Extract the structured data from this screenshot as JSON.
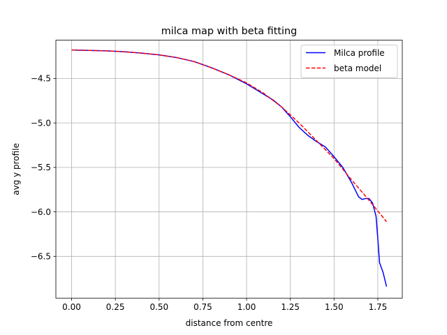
{
  "chart_data": {
    "type": "line",
    "title": "milca map with beta fitting",
    "xlabel": "distance from centre",
    "ylabel": "avg y profile",
    "xlim": [
      -0.09,
      1.89
    ],
    "ylim": [
      -6.97,
      -4.07
    ],
    "xticks": [
      0.0,
      0.25,
      0.5,
      0.75,
      1.0,
      1.25,
      1.5,
      1.75
    ],
    "xtick_labels": [
      "0.00",
      "0.25",
      "0.50",
      "0.75",
      "1.00",
      "1.25",
      "1.50",
      "1.75"
    ],
    "yticks": [
      -4.5,
      -5.0,
      -5.5,
      -6.0,
      -6.5
    ],
    "ytick_labels": [
      "−4.5",
      "−5.0",
      "−5.5",
      "−6.0",
      "−6.5"
    ],
    "grid": true,
    "legend": "top-right",
    "series": [
      {
        "name": "Milca profile",
        "color": "#0000ff",
        "style": "solid",
        "x": [
          0.0,
          0.1,
          0.2,
          0.3,
          0.4,
          0.5,
          0.6,
          0.7,
          0.8,
          0.9,
          1.0,
          1.1,
          1.15,
          1.2,
          1.25,
          1.3,
          1.35,
          1.4,
          1.45,
          1.5,
          1.55,
          1.6,
          1.62,
          1.64,
          1.66,
          1.68,
          1.7,
          1.72,
          1.74,
          1.75,
          1.76,
          1.78,
          1.8
        ],
        "y": [
          -4.18,
          -4.185,
          -4.19,
          -4.2,
          -4.215,
          -4.235,
          -4.265,
          -4.31,
          -4.38,
          -4.46,
          -4.56,
          -4.68,
          -4.74,
          -4.82,
          -4.93,
          -5.05,
          -5.14,
          -5.21,
          -5.27,
          -5.38,
          -5.5,
          -5.67,
          -5.75,
          -5.83,
          -5.86,
          -5.85,
          -5.85,
          -5.9,
          -6.05,
          -6.3,
          -6.57,
          -6.68,
          -6.84
        ]
      },
      {
        "name": "beta model",
        "color": "#ff0000",
        "style": "dashed",
        "x": [
          0.0,
          0.1,
          0.2,
          0.3,
          0.4,
          0.5,
          0.6,
          0.7,
          0.8,
          0.9,
          1.0,
          1.1,
          1.2,
          1.3,
          1.4,
          1.5,
          1.6,
          1.7,
          1.8
        ],
        "y": [
          -4.18,
          -4.185,
          -4.19,
          -4.2,
          -4.215,
          -4.235,
          -4.265,
          -4.31,
          -4.38,
          -4.46,
          -4.55,
          -4.67,
          -4.82,
          -5.0,
          -5.2,
          -5.4,
          -5.64,
          -5.87,
          -6.11
        ]
      }
    ]
  }
}
